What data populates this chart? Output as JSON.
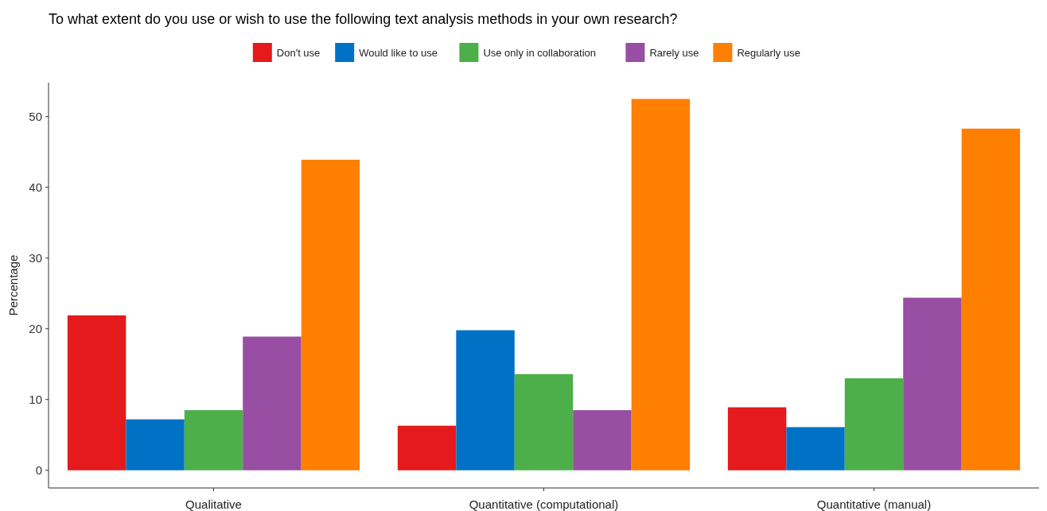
{
  "chart_data": {
    "type": "bar",
    "title": "To what extent do you use or wish to use the following text analysis methods in your own research?",
    "ylabel": "Percentage",
    "categories": [
      "Qualitative",
      "Quantitative (computational)",
      "Quantitative (manual)"
    ],
    "series": [
      {
        "name": "Don't use",
        "color": "#e41a1c",
        "values": [
          21.9,
          6.3,
          8.9
        ]
      },
      {
        "name": "Would like to use",
        "color": "#0072c6",
        "values": [
          7.2,
          19.8,
          6.1
        ]
      },
      {
        "name": "Use only in collaboration",
        "color": "#4daf4a",
        "values": [
          8.5,
          13.6,
          13.0
        ]
      },
      {
        "name": "Rarely use",
        "color": "#984ea3",
        "values": [
          18.9,
          8.5,
          24.4
        ]
      },
      {
        "name": "Regularly use",
        "color": "#ff7f00",
        "values": [
          43.9,
          52.5,
          48.3
        ]
      }
    ],
    "ylim": [
      -2.5,
      54.8
    ],
    "yticks": [
      0,
      10,
      20,
      30,
      40,
      50
    ],
    "grid": false,
    "legend": "top"
  }
}
